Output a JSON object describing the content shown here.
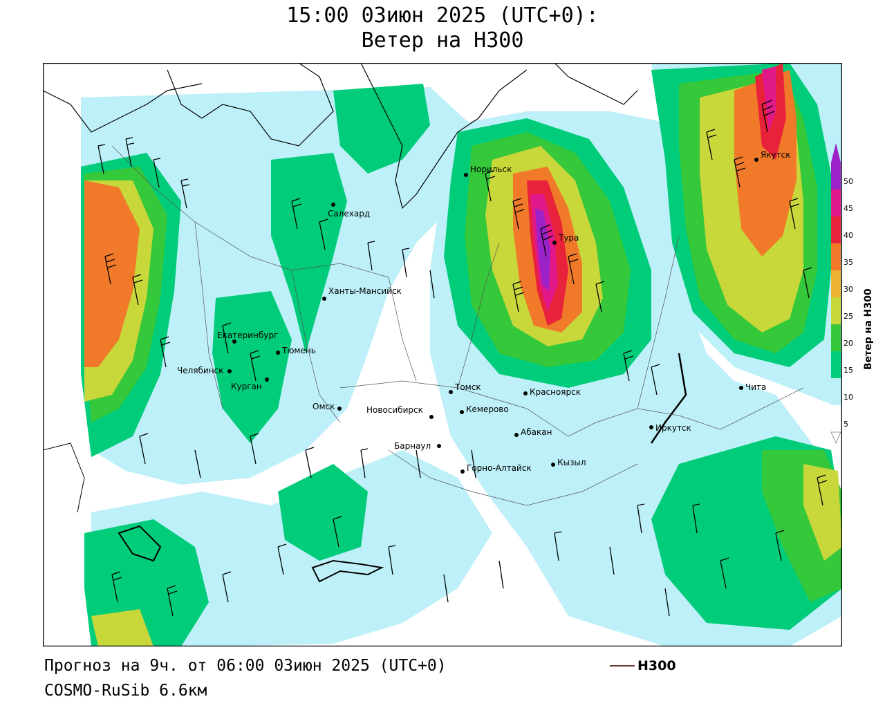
{
  "title": {
    "line1": "15:00 03июн 2025 (UTC+0):",
    "line2": "Ветер на H300"
  },
  "footer": {
    "forecast": "Прогноз на 9ч. от 06:00 03июн 2025 (UTC+0)",
    "model": "COSMO-RuSib 6.6км",
    "legend_line_label": "H300"
  },
  "colorbar": {
    "label": "Ветер на H300",
    "ticks": [
      "5",
      "10",
      "15",
      "20",
      "25",
      "30",
      "35",
      "40",
      "45",
      "50"
    ],
    "colors": [
      "#ffffff",
      "#bdf0f8",
      "#00cc7a",
      "#35c83a",
      "#c8d73a",
      "#f0b234",
      "#f07a2a",
      "#e8223a",
      "#e0188a",
      "#9b22c8"
    ]
  },
  "cities": [
    {
      "name": "Норильск"
    },
    {
      "name": "Якутск"
    },
    {
      "name": "Салехард"
    },
    {
      "name": "Тура"
    },
    {
      "name": "Ханты-Мансийск"
    },
    {
      "name": "Екатеринбург"
    },
    {
      "name": "Тюмень"
    },
    {
      "name": "Челябинск"
    },
    {
      "name": "Курган"
    },
    {
      "name": "Омск"
    },
    {
      "name": "Томск"
    },
    {
      "name": "Красноярск"
    },
    {
      "name": "Новосибирск"
    },
    {
      "name": "Кемерово"
    },
    {
      "name": "Абакан"
    },
    {
      "name": "Барнаул"
    },
    {
      "name": "Горно-Алтайск"
    },
    {
      "name": "Кызыл"
    },
    {
      "name": "Иркутск"
    },
    {
      "name": "Чита"
    }
  ]
}
